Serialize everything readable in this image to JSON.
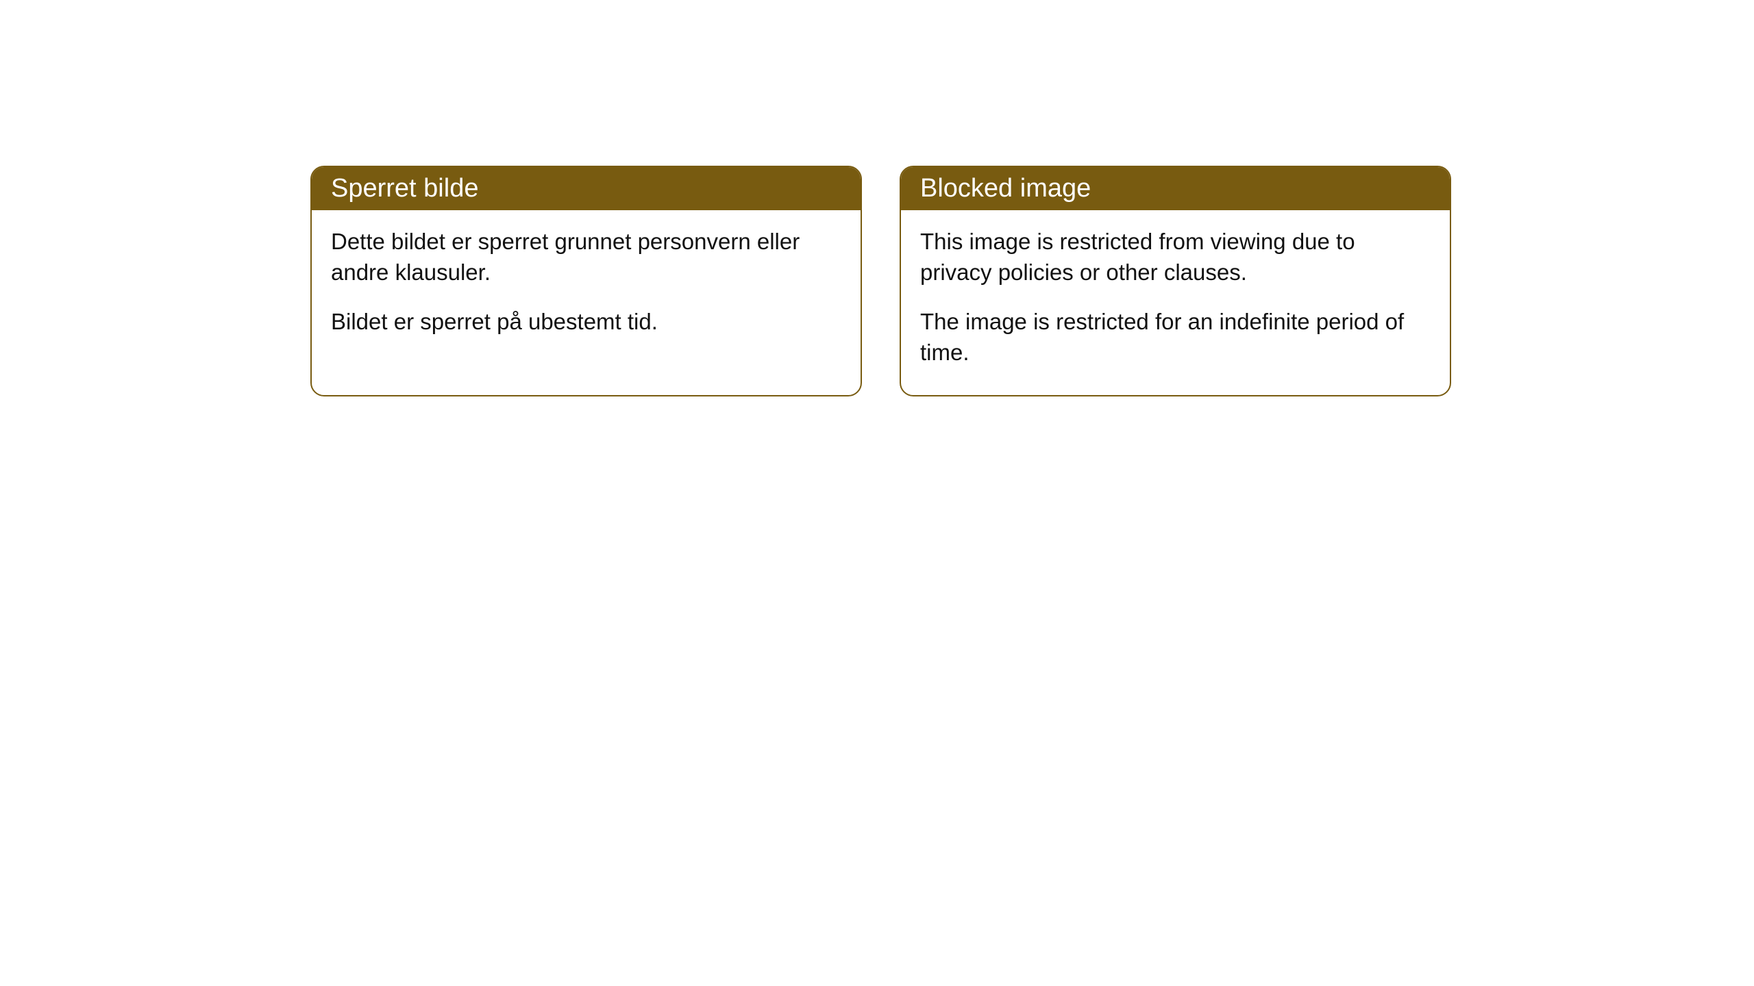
{
  "cards": [
    {
      "title": "Sperret bilde",
      "para1": "Dette bildet er sperret grunnet personvern eller andre klausuler.",
      "para2": "Bildet er sperret på ubestemt tid."
    },
    {
      "title": "Blocked image",
      "para1": "This image is restricted from viewing due to privacy policies or other clauses.",
      "para2": "The image is restricted for an indefinite period of time."
    }
  ],
  "styles": {
    "header_bg": "#785b10",
    "header_text_color": "#ffffff",
    "border_color": "#785b10",
    "body_bg": "#ffffff",
    "body_text_color": "#111111",
    "border_radius": 20,
    "header_fontsize": 38,
    "body_fontsize": 33
  }
}
